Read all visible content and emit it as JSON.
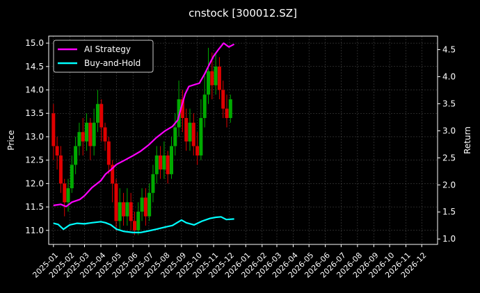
{
  "chart_data": {
    "type": "line",
    "title": "cnstock [300012.SZ]",
    "ylabel_left": "Price",
    "ylabel_right": "Return",
    "grid": true,
    "legend_placement": "top-left",
    "x_range": [
      "2024-12-23",
      "2026-12-31"
    ],
    "y_left_range": [
      10.7,
      15.15
    ],
    "y_right_range": [
      0.9,
      4.75
    ],
    "x_tick_labels": [
      "2025-01",
      "2025-02",
      "2025-03",
      "2025-04",
      "2025-05",
      "2025-06",
      "2025-07",
      "2025-08",
      "2025-09",
      "2025-10",
      "2025-11",
      "2025-12",
      "2026-01",
      "2026-02",
      "2026-03",
      "2026-04",
      "2026-05",
      "2026-06",
      "2026-07",
      "2026-08",
      "2026-09",
      "2026-10",
      "2026-11",
      "2026-12"
    ],
    "y_left_ticks": [
      "11.0",
      "11.5",
      "12.0",
      "12.5",
      "13.0",
      "13.5",
      "14.0",
      "14.5",
      "15.0"
    ],
    "y_right_ticks": [
      "1.0",
      "1.5",
      "2.0",
      "2.5",
      "3.0",
      "3.5",
      "4.0",
      "4.5"
    ],
    "series": [
      {
        "name": "AI Strategy",
        "axis": "right",
        "color": "#ff00ff",
        "points": [
          [
            "2025-01-01",
            1.62
          ],
          [
            "2025-01-15",
            1.64
          ],
          [
            "2025-01-25",
            1.6
          ],
          [
            "2025-02-05",
            1.68
          ],
          [
            "2025-02-20",
            1.73
          ],
          [
            "2025-03-01",
            1.8
          ],
          [
            "2025-03-15",
            1.95
          ],
          [
            "2025-04-01",
            2.08
          ],
          [
            "2025-04-10",
            2.2
          ],
          [
            "2025-04-20",
            2.28
          ],
          [
            "2025-05-01",
            2.38
          ],
          [
            "2025-05-15",
            2.45
          ],
          [
            "2025-06-01",
            2.54
          ],
          [
            "2025-06-15",
            2.62
          ],
          [
            "2025-07-01",
            2.74
          ],
          [
            "2025-07-15",
            2.87
          ],
          [
            "2025-08-01",
            3.0
          ],
          [
            "2025-08-15",
            3.08
          ],
          [
            "2025-08-25",
            3.2
          ],
          [
            "2025-09-01",
            3.45
          ],
          [
            "2025-09-08",
            3.68
          ],
          [
            "2025-09-15",
            3.82
          ],
          [
            "2025-09-25",
            3.85
          ],
          [
            "2025-10-05",
            3.88
          ],
          [
            "2025-10-15",
            4.05
          ],
          [
            "2025-10-25",
            4.25
          ],
          [
            "2025-11-01",
            4.38
          ],
          [
            "2025-11-10",
            4.5
          ],
          [
            "2025-11-20",
            4.62
          ],
          [
            "2025-11-30",
            4.55
          ],
          [
            "2025-12-10",
            4.6
          ]
        ]
      },
      {
        "name": "Buy-and-Hold",
        "axis": "right",
        "color": "#00ffff",
        "points": [
          [
            "2025-01-01",
            1.29
          ],
          [
            "2025-01-10",
            1.27
          ],
          [
            "2025-01-20",
            1.18
          ],
          [
            "2025-02-01",
            1.26
          ],
          [
            "2025-02-15",
            1.29
          ],
          [
            "2025-03-01",
            1.28
          ],
          [
            "2025-03-15",
            1.3
          ],
          [
            "2025-04-01",
            1.32
          ],
          [
            "2025-04-10",
            1.3
          ],
          [
            "2025-04-20",
            1.26
          ],
          [
            "2025-05-01",
            1.18
          ],
          [
            "2025-05-15",
            1.14
          ],
          [
            "2025-06-01",
            1.12
          ],
          [
            "2025-06-15",
            1.12
          ],
          [
            "2025-07-01",
            1.15
          ],
          [
            "2025-07-15",
            1.18
          ],
          [
            "2025-08-01",
            1.22
          ],
          [
            "2025-08-15",
            1.25
          ],
          [
            "2025-09-01",
            1.35
          ],
          [
            "2025-09-10",
            1.3
          ],
          [
            "2025-09-25",
            1.26
          ],
          [
            "2025-10-10",
            1.33
          ],
          [
            "2025-10-25",
            1.38
          ],
          [
            "2025-11-05",
            1.4
          ],
          [
            "2025-11-15",
            1.41
          ],
          [
            "2025-11-25",
            1.36
          ],
          [
            "2025-12-10",
            1.37
          ]
        ]
      }
    ],
    "candles": [
      {
        "date": "2025-01-01",
        "open": 13.5,
        "close": 12.8,
        "high": 13.7,
        "low": 12.5
      },
      {
        "date": "2025-01-08",
        "open": 12.8,
        "close": 12.6,
        "high": 13.0,
        "low": 12.3
      },
      {
        "date": "2025-01-15",
        "open": 12.6,
        "close": 12.0,
        "high": 12.8,
        "low": 11.8
      },
      {
        "date": "2025-01-22",
        "open": 12.0,
        "close": 11.6,
        "high": 12.1,
        "low": 11.3
      },
      {
        "date": "2025-01-29",
        "open": 11.6,
        "close": 11.9,
        "high": 12.1,
        "low": 11.4
      },
      {
        "date": "2025-02-05",
        "open": 11.9,
        "close": 12.4,
        "high": 12.6,
        "low": 11.8
      },
      {
        "date": "2025-02-12",
        "open": 12.4,
        "close": 12.8,
        "high": 13.0,
        "low": 12.2
      },
      {
        "date": "2025-02-19",
        "open": 12.8,
        "close": 13.1,
        "high": 13.3,
        "low": 12.6
      },
      {
        "date": "2025-02-26",
        "open": 13.1,
        "close": 12.9,
        "high": 13.4,
        "low": 12.6
      },
      {
        "date": "2025-03-05",
        "open": 12.9,
        "close": 13.3,
        "high": 13.5,
        "low": 12.7
      },
      {
        "date": "2025-03-12",
        "open": 13.3,
        "close": 12.8,
        "high": 13.4,
        "low": 12.5
      },
      {
        "date": "2025-03-19",
        "open": 12.8,
        "close": 13.3,
        "high": 13.6,
        "low": 12.6
      },
      {
        "date": "2025-03-26",
        "open": 13.3,
        "close": 13.7,
        "high": 14.0,
        "low": 13.1
      },
      {
        "date": "2025-04-02",
        "open": 13.7,
        "close": 13.2,
        "high": 13.8,
        "low": 12.9
      },
      {
        "date": "2025-04-09",
        "open": 13.2,
        "close": 12.9,
        "high": 13.3,
        "low": 12.7
      },
      {
        "date": "2025-04-16",
        "open": 12.9,
        "close": 12.4,
        "high": 13.0,
        "low": 12.2
      },
      {
        "date": "2025-04-23",
        "open": 12.4,
        "close": 12.0,
        "high": 12.5,
        "low": 11.6
      },
      {
        "date": "2025-04-30",
        "open": 12.0,
        "close": 11.2,
        "high": 12.1,
        "low": 11.0
      },
      {
        "date": "2025-05-07",
        "open": 11.2,
        "close": 11.6,
        "high": 11.9,
        "low": 11.0
      },
      {
        "date": "2025-05-14",
        "open": 11.6,
        "close": 11.3,
        "high": 11.8,
        "low": 11.1
      },
      {
        "date": "2025-05-21",
        "open": 11.3,
        "close": 11.6,
        "high": 11.9,
        "low": 11.1
      },
      {
        "date": "2025-05-28",
        "open": 11.6,
        "close": 11.2,
        "high": 11.8,
        "low": 11.0
      },
      {
        "date": "2025-06-04",
        "open": 11.2,
        "close": 11.0,
        "high": 11.4,
        "low": 10.9
      },
      {
        "date": "2025-06-11",
        "open": 11.0,
        "close": 11.4,
        "high": 11.6,
        "low": 10.9
      },
      {
        "date": "2025-06-18",
        "open": 11.4,
        "close": 11.7,
        "high": 11.9,
        "low": 11.2
      },
      {
        "date": "2025-06-25",
        "open": 11.7,
        "close": 11.3,
        "high": 11.9,
        "low": 11.1
      },
      {
        "date": "2025-07-02",
        "open": 11.3,
        "close": 11.8,
        "high": 12.0,
        "low": 11.2
      },
      {
        "date": "2025-07-09",
        "open": 11.8,
        "close": 12.2,
        "high": 12.4,
        "low": 11.6
      },
      {
        "date": "2025-07-16",
        "open": 12.2,
        "close": 12.6,
        "high": 12.8,
        "low": 12.0
      },
      {
        "date": "2025-07-23",
        "open": 12.6,
        "close": 12.3,
        "high": 12.8,
        "low": 12.1
      },
      {
        "date": "2025-07-30",
        "open": 12.3,
        "close": 12.6,
        "high": 12.9,
        "low": 12.1
      },
      {
        "date": "2025-08-06",
        "open": 12.6,
        "close": 12.2,
        "high": 12.7,
        "low": 12.0
      },
      {
        "date": "2025-08-13",
        "open": 12.2,
        "close": 12.8,
        "high": 13.0,
        "low": 12.1
      },
      {
        "date": "2025-08-20",
        "open": 12.8,
        "close": 13.2,
        "high": 13.5,
        "low": 12.6
      },
      {
        "date": "2025-08-27",
        "open": 13.2,
        "close": 13.8,
        "high": 14.2,
        "low": 13.0
      },
      {
        "date": "2025-09-03",
        "open": 13.8,
        "close": 13.4,
        "high": 14.0,
        "low": 13.1
      },
      {
        "date": "2025-09-10",
        "open": 13.4,
        "close": 12.9,
        "high": 13.6,
        "low": 12.7
      },
      {
        "date": "2025-09-17",
        "open": 12.9,
        "close": 13.3,
        "high": 13.6,
        "low": 12.7
      },
      {
        "date": "2025-09-24",
        "open": 13.3,
        "close": 12.8,
        "high": 13.5,
        "low": 12.6
      },
      {
        "date": "2025-10-01",
        "open": 12.8,
        "close": 12.6,
        "high": 13.1,
        "low": 12.4
      },
      {
        "date": "2025-10-08",
        "open": 12.6,
        "close": 13.4,
        "high": 13.8,
        "low": 12.5
      },
      {
        "date": "2025-10-15",
        "open": 13.4,
        "close": 13.9,
        "high": 14.3,
        "low": 13.2
      },
      {
        "date": "2025-10-22",
        "open": 13.9,
        "close": 14.4,
        "high": 14.9,
        "low": 13.7
      },
      {
        "date": "2025-10-29",
        "open": 14.4,
        "close": 14.1,
        "high": 14.8,
        "low": 13.8
      },
      {
        "date": "2025-11-05",
        "open": 14.1,
        "close": 14.5,
        "high": 14.8,
        "low": 13.9
      },
      {
        "date": "2025-11-12",
        "open": 14.5,
        "close": 14.0,
        "high": 14.7,
        "low": 13.8
      },
      {
        "date": "2025-11-19",
        "open": 14.0,
        "close": 13.6,
        "high": 14.2,
        "low": 13.4
      },
      {
        "date": "2025-11-26",
        "open": 13.6,
        "close": 13.4,
        "high": 13.9,
        "low": 13.2
      },
      {
        "date": "2025-12-03",
        "open": 13.4,
        "close": 13.8,
        "high": 13.9,
        "low": 13.3
      }
    ]
  }
}
